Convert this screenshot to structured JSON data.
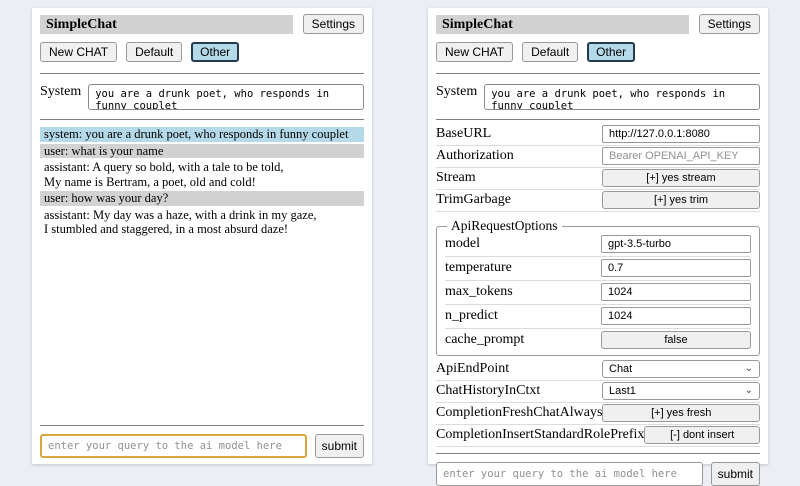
{
  "header": {
    "title": "SimpleChat",
    "settings_button": "Settings",
    "new_chat_button": "New CHAT",
    "sessions": [
      {
        "label": "Default",
        "active": false
      },
      {
        "label": "Other",
        "active": true
      }
    ],
    "system_label": "System",
    "system_value": "you are a drunk poet, who responds in funny couplet"
  },
  "chat": {
    "messages": [
      {
        "role": "system",
        "text": "system: you are a drunk poet, who responds in funny couplet"
      },
      {
        "role": "user",
        "text": "user: what is your name"
      },
      {
        "role": "assistant",
        "text": "assistant: A query so bold, with a tale to be told,\nMy name is Bertram, a poet, old and cold!"
      },
      {
        "role": "user",
        "text": "user: how was your day?"
      },
      {
        "role": "assistant",
        "text": "assistant: My day was a haze, with a drink in my gaze,\nI stumbled and staggered, in a most absurd daze!"
      }
    ]
  },
  "settings": {
    "rows": [
      {
        "label": "BaseURL",
        "type": "input",
        "value": "http://127.0.0.1:8080"
      },
      {
        "label": "Authorization",
        "type": "input",
        "placeholder": "Bearer OPENAI_API_KEY"
      },
      {
        "label": "Stream",
        "type": "button",
        "value": "[+] yes stream"
      },
      {
        "label": "TrimGarbage",
        "type": "button",
        "value": "[+] yes trim"
      }
    ],
    "fieldset": {
      "legend": "ApiRequestOptions",
      "rows": [
        {
          "label": "model",
          "type": "input",
          "value": "gpt-3.5-turbo"
        },
        {
          "label": "temperature",
          "type": "input",
          "value": "0.7"
        },
        {
          "label": "max_tokens",
          "type": "input",
          "value": "1024"
        },
        {
          "label": "n_predict",
          "type": "input",
          "value": "1024"
        },
        {
          "label": "cache_prompt",
          "type": "button",
          "value": "false"
        }
      ]
    },
    "rows2": [
      {
        "label": "ApiEndPoint",
        "type": "select",
        "value": "Chat"
      },
      {
        "label": "ChatHistoryInCtxt",
        "type": "select",
        "value": "Last1"
      },
      {
        "label": "CompletionFreshChatAlways",
        "type": "button",
        "value": "[+] yes fresh"
      },
      {
        "label": "CompletionInsertStandardRolePrefix",
        "type": "button",
        "value": "[-] dont insert"
      }
    ]
  },
  "query_bar": {
    "placeholder": "enter your query to the ai model here",
    "submit_label": "submit"
  },
  "icons": {
    "chevron_down": "⌄"
  },
  "colors": {
    "page_bg": "#ebeef5",
    "title_bar_bg": "#d2d2d2",
    "active_session_bg": "#b4d9e9",
    "msg_system_bg": "#b4d9e9",
    "msg_user_bg": "#d2d2d2",
    "focused_input_border": "#dca63f"
  }
}
